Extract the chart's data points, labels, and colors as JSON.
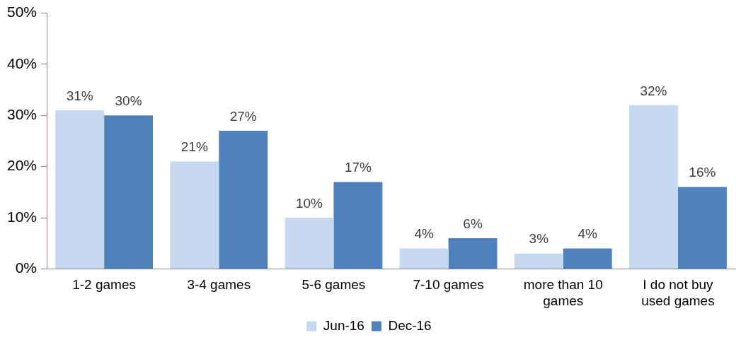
{
  "chart_data": {
    "type": "bar",
    "categories": [
      "1-2 games",
      "3-4 games",
      "5-6 games",
      "7-10 games",
      "more than 10 games",
      "I do not buy used games"
    ],
    "series": [
      {
        "name": "Jun-16",
        "color": "#c6d9f1",
        "values": [
          31,
          21,
          10,
          4,
          3,
          32
        ],
        "value_labels": [
          "31%",
          "21%",
          "10%",
          "4%",
          "3%",
          "32%"
        ]
      },
      {
        "name": "Dec-16",
        "color": "#4f81bd",
        "values": [
          30,
          27,
          17,
          6,
          4,
          16
        ],
        "value_labels": [
          "30%",
          "27%",
          "17%",
          "6%",
          "4%",
          "16%"
        ]
      }
    ],
    "ylim": [
      0,
      50
    ],
    "yticks": [
      {
        "value": 0,
        "label": "0%"
      },
      {
        "value": 10,
        "label": "10%"
      },
      {
        "value": 20,
        "label": "20%"
      },
      {
        "value": 30,
        "label": "30%"
      },
      {
        "value": 40,
        "label": "40%"
      },
      {
        "value": 50,
        "label": "50%"
      }
    ],
    "grid": false,
    "legend": "bottom"
  }
}
